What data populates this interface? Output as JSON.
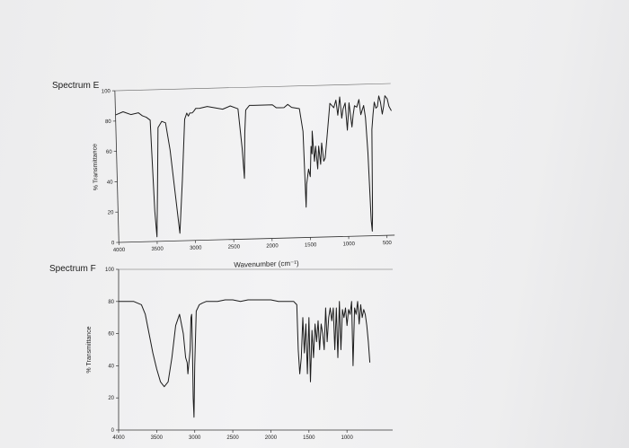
{
  "chart_data": [
    {
      "type": "line",
      "label": "Spectrum E",
      "xlabel": "Wavenumber (cm⁻¹)",
      "ylabel": "% Transmittance",
      "xlim": [
        4000,
        400
      ],
      "ylim": [
        0,
        100
      ],
      "x_ticks": [
        "4000",
        "3500",
        "3000",
        "2500",
        "2000",
        "1500",
        "1000",
        "500"
      ],
      "y_ticks": [
        "0",
        "20",
        "40",
        "60",
        "80",
        "100"
      ],
      "series": [
        {
          "x": [
            4000,
            3900,
            3800,
            3700,
            3650,
            3600,
            3550,
            3540,
            3520,
            3500,
            3480,
            3450,
            3400,
            3350,
            3300,
            3200,
            3150,
            3100,
            3070,
            3050,
            3030,
            3000,
            2980,
            2950,
            2900,
            2800,
            2700,
            2600,
            2500,
            2400,
            2360,
            2340,
            2320,
            2300,
            2250,
            2200,
            2100,
            2050,
            2000,
            1950,
            1900,
            1850,
            1800,
            1750,
            1700,
            1600,
            1560,
            1545,
            1530,
            1500,
            1480,
            1460,
            1450,
            1440,
            1420,
            1400,
            1380,
            1360,
            1340,
            1320,
            1300,
            1280,
            1250,
            1200,
            1150,
            1120,
            1100,
            1070,
            1050,
            1030,
            1000,
            980,
            950,
            920,
            900,
            880,
            850,
            820,
            800,
            780,
            760,
            740,
            720,
            700,
            690,
            680,
            660,
            640,
            620,
            600,
            580,
            560,
            540,
            520,
            500,
            480,
            450,
            430,
            400
          ],
          "y": [
            84,
            86,
            84,
            85,
            83,
            82,
            80,
            60,
            20,
            3,
            30,
            75,
            79,
            78,
            60,
            5,
            40,
            80,
            84,
            82,
            84,
            84,
            85,
            87,
            87,
            88,
            87,
            86,
            88,
            86,
            60,
            40,
            70,
            85,
            88,
            88,
            88,
            88,
            88,
            88,
            86,
            86,
            86,
            88,
            86,
            85,
            70,
            20,
            35,
            45,
            40,
            60,
            55,
            70,
            50,
            60,
            45,
            60,
            48,
            62,
            50,
            52,
            65,
            88,
            85,
            90,
            80,
            92,
            78,
            84,
            88,
            70,
            88,
            72,
            80,
            86,
            85,
            90,
            80,
            83,
            86,
            78,
            55,
            10,
            3,
            15,
            70,
            80,
            88,
            84,
            85,
            92,
            88,
            80,
            85,
            92,
            90,
            85,
            82
          ]
        }
      ]
    },
    {
      "type": "line",
      "label": "Spectrum F",
      "xlabel": "",
      "ylabel": "% Transmittance",
      "xlim": [
        4000,
        400
      ],
      "ylim": [
        0,
        100
      ],
      "x_ticks": [
        "4000",
        "3500",
        "3000",
        "2500",
        "2000",
        "1500",
        "1000"
      ],
      "y_ticks": [
        "0",
        "20",
        "40",
        "60",
        "80",
        "100"
      ],
      "series": [
        {
          "x": [
            4000,
            3800,
            3700,
            3650,
            3600,
            3550,
            3500,
            3450,
            3400,
            3350,
            3300,
            3250,
            3200,
            3150,
            3120,
            3100,
            3090,
            3080,
            3070,
            3060,
            3050,
            3040,
            3030,
            3020,
            3010,
            3000,
            2980,
            2960,
            2940,
            2900,
            2850,
            2800,
            2700,
            2600,
            2500,
            2400,
            2300,
            2200,
            2100,
            2000,
            1900,
            1800,
            1750,
            1700,
            1680,
            1660,
            1640,
            1620,
            1600,
            1580,
            1560,
            1540,
            1520,
            1500,
            1480,
            1460,
            1440,
            1420,
            1400,
            1380,
            1360,
            1340,
            1320,
            1300,
            1280,
            1260,
            1240,
            1220,
            1200,
            1180,
            1160,
            1140,
            1120,
            1100,
            1080,
            1060,
            1040,
            1020,
            1000,
            980,
            960,
            940,
            920,
            900,
            880,
            860,
            840,
            820,
            800,
            780,
            760,
            740,
            720,
            700
          ],
          "y": [
            80,
            80,
            78,
            72,
            60,
            48,
            38,
            30,
            27,
            30,
            45,
            65,
            72,
            60,
            45,
            42,
            35,
            40,
            45,
            50,
            70,
            72,
            50,
            20,
            8,
            40,
            74,
            76,
            78,
            79,
            80,
            80,
            80,
            81,
            81,
            80,
            81,
            81,
            81,
            81,
            80,
            80,
            80,
            80,
            79,
            78,
            50,
            35,
            45,
            70,
            48,
            66,
            35,
            70,
            30,
            62,
            45,
            66,
            55,
            68,
            50,
            66,
            60,
            50,
            76,
            55,
            70,
            76,
            68,
            76,
            50,
            76,
            45,
            80,
            50,
            75,
            70,
            76,
            65,
            75,
            72,
            80,
            40,
            76,
            72,
            80,
            66,
            78,
            70,
            75,
            72,
            65,
            55,
            42
          ]
        }
      ]
    }
  ],
  "labels": {
    "spectrum_e": "Spectrum E",
    "spectrum_f": "Spectrum F",
    "x_axis_e": "Wavenumber (cm⁻¹)"
  },
  "colors": {
    "ink": "#1c1c1c",
    "paper": "#f1f1f2"
  }
}
